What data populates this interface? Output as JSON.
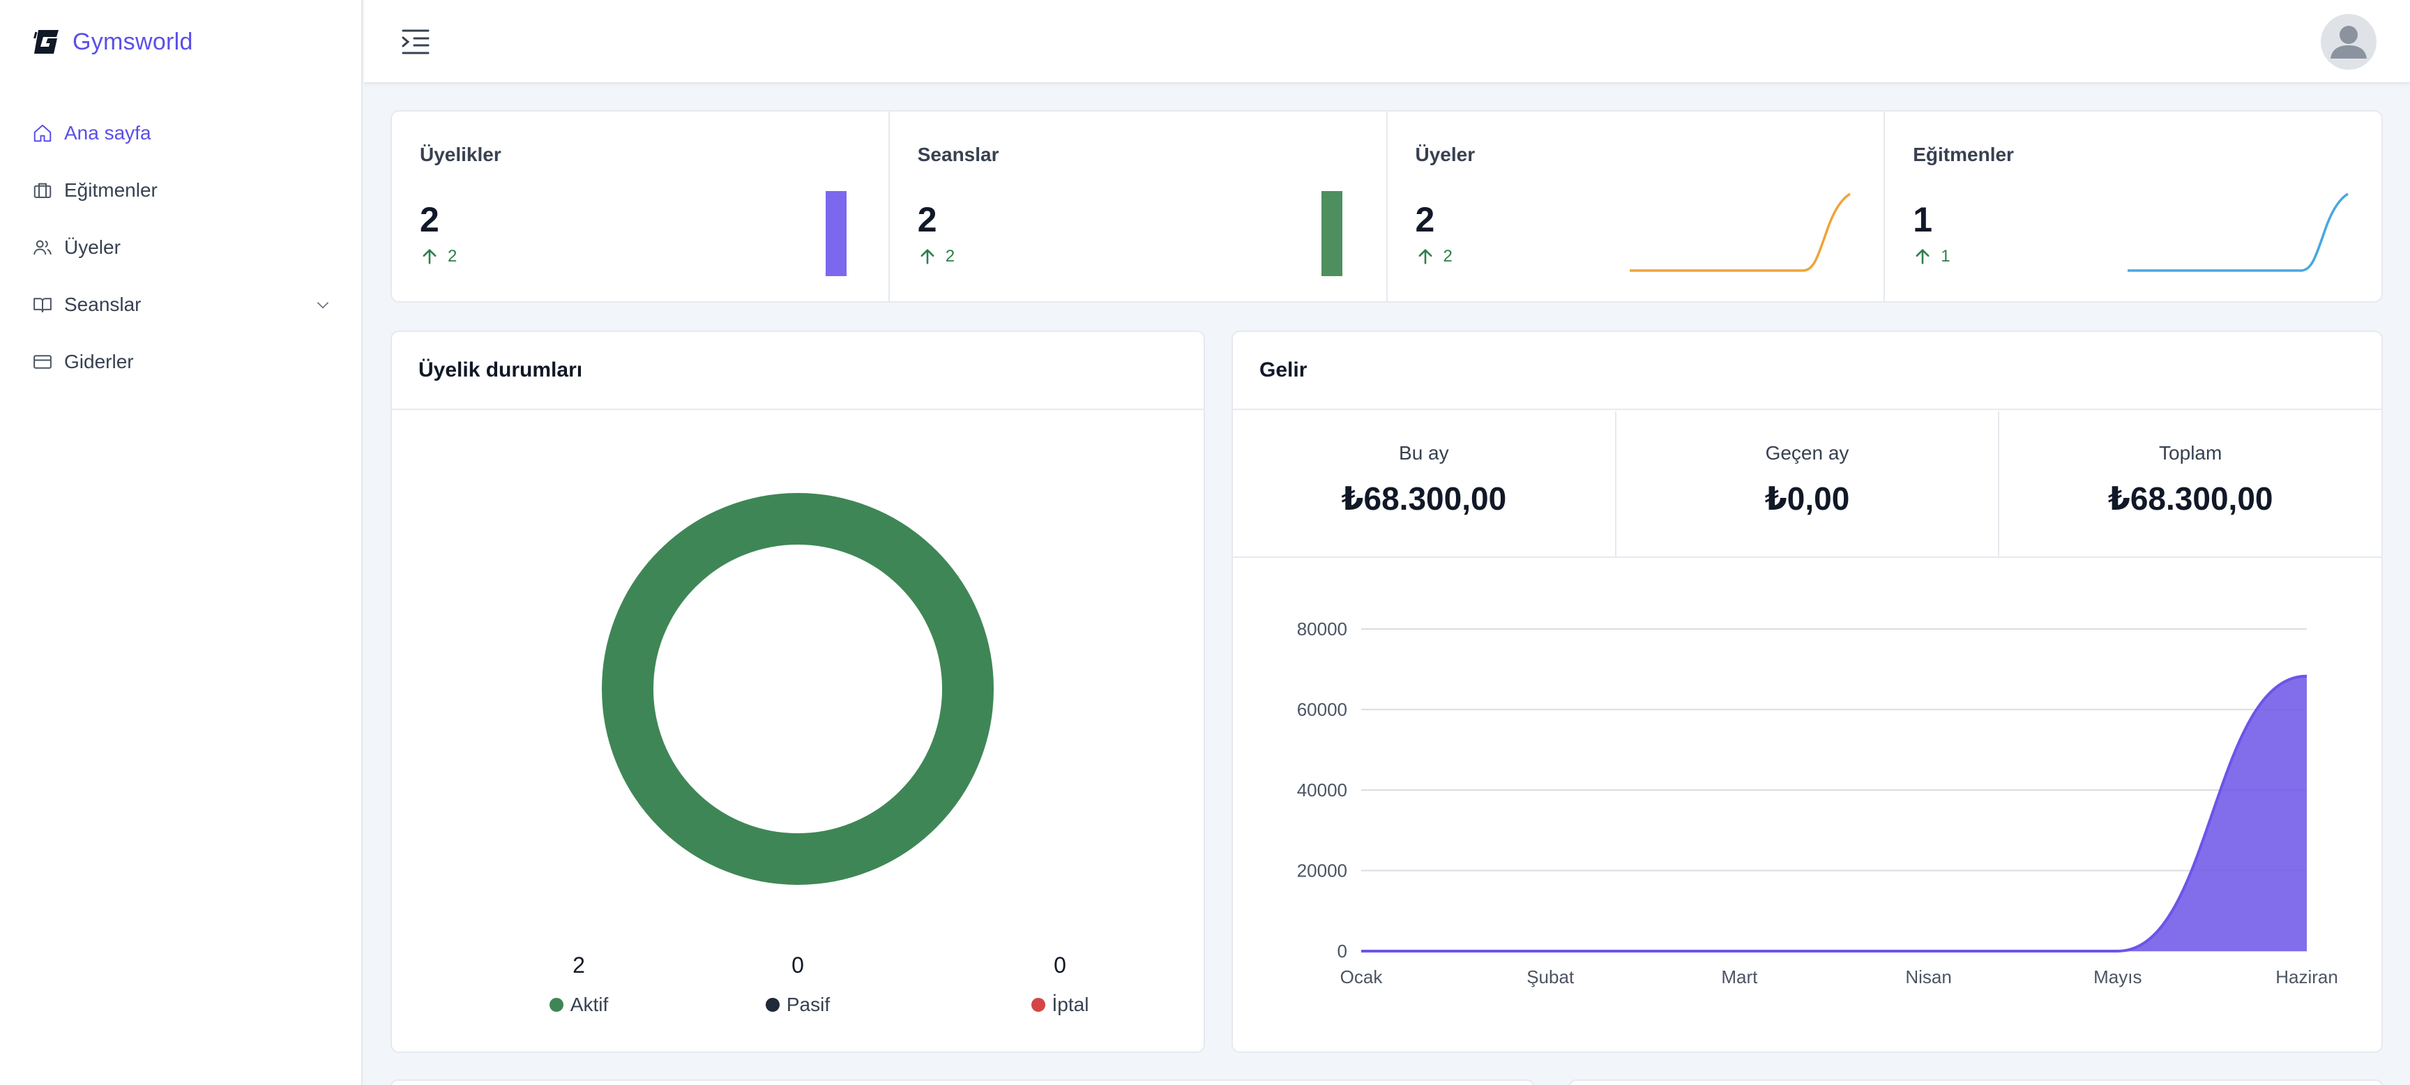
{
  "brand": {
    "name": "Gymsworld"
  },
  "sidebar": {
    "items": [
      {
        "label": "Ana sayfa",
        "icon": "home-icon",
        "active": true
      },
      {
        "label": "Eğitmenler",
        "icon": "briefcase-icon"
      },
      {
        "label": "Üyeler",
        "icon": "users-icon"
      },
      {
        "label": "Seanslar",
        "icon": "book-icon",
        "expandable": true
      },
      {
        "label": "Giderler",
        "icon": "credit-card-icon"
      }
    ]
  },
  "header": {
    "menu_icon": "menu-indent-icon",
    "avatar_icon": "user-avatar-icon"
  },
  "stats": [
    {
      "title": "Üyelikler",
      "value": "2",
      "delta": "2",
      "color": "#7b68ee",
      "visual": "bar"
    },
    {
      "title": "Seanslar",
      "value": "2",
      "delta": "2",
      "color": "#4e8f60",
      "visual": "bar"
    },
    {
      "title": "Üyeler",
      "value": "2",
      "delta": "2",
      "color": "#f0a43a",
      "visual": "sparkline"
    },
    {
      "title": "Eğitmenler",
      "value": "1",
      "delta": "1",
      "color": "#46a8e0",
      "visual": "sparkline"
    }
  ],
  "membership": {
    "title": "Üyelik durumları",
    "legend": [
      {
        "label": "Aktif",
        "value": "2",
        "color": "#3f8656"
      },
      {
        "label": "Pasif",
        "value": "0",
        "color": "#1f2937"
      },
      {
        "label": "İptal",
        "value": "0",
        "color": "#d64545"
      }
    ]
  },
  "income": {
    "title": "Gelir",
    "kpis": [
      {
        "label": "Bu ay",
        "value": "₺68.300,00"
      },
      {
        "label": "Geçen ay",
        "value": "₺0,00"
      },
      {
        "label": "Toplam",
        "value": "₺68.300,00"
      }
    ]
  },
  "chart_data": [
    {
      "type": "area",
      "categories": [
        "Ocak",
        "Şubat",
        "Mart",
        "Nisan",
        "Mayıs",
        "Haziran"
      ],
      "series": [
        {
          "values": [
            0,
            0,
            0,
            0,
            0,
            68300
          ]
        }
      ],
      "yticks": [
        0,
        20000,
        40000,
        60000,
        80000
      ],
      "ylim": [
        0,
        80000
      ],
      "grid": true,
      "color": "#6c55e8"
    },
    {
      "type": "pie",
      "categories": [
        "Aktif",
        "Pasif",
        "İptal"
      ],
      "values": [
        2,
        0,
        0
      ],
      "colors": [
        "#3f8656",
        "#1f2937",
        "#d64545"
      ]
    }
  ]
}
